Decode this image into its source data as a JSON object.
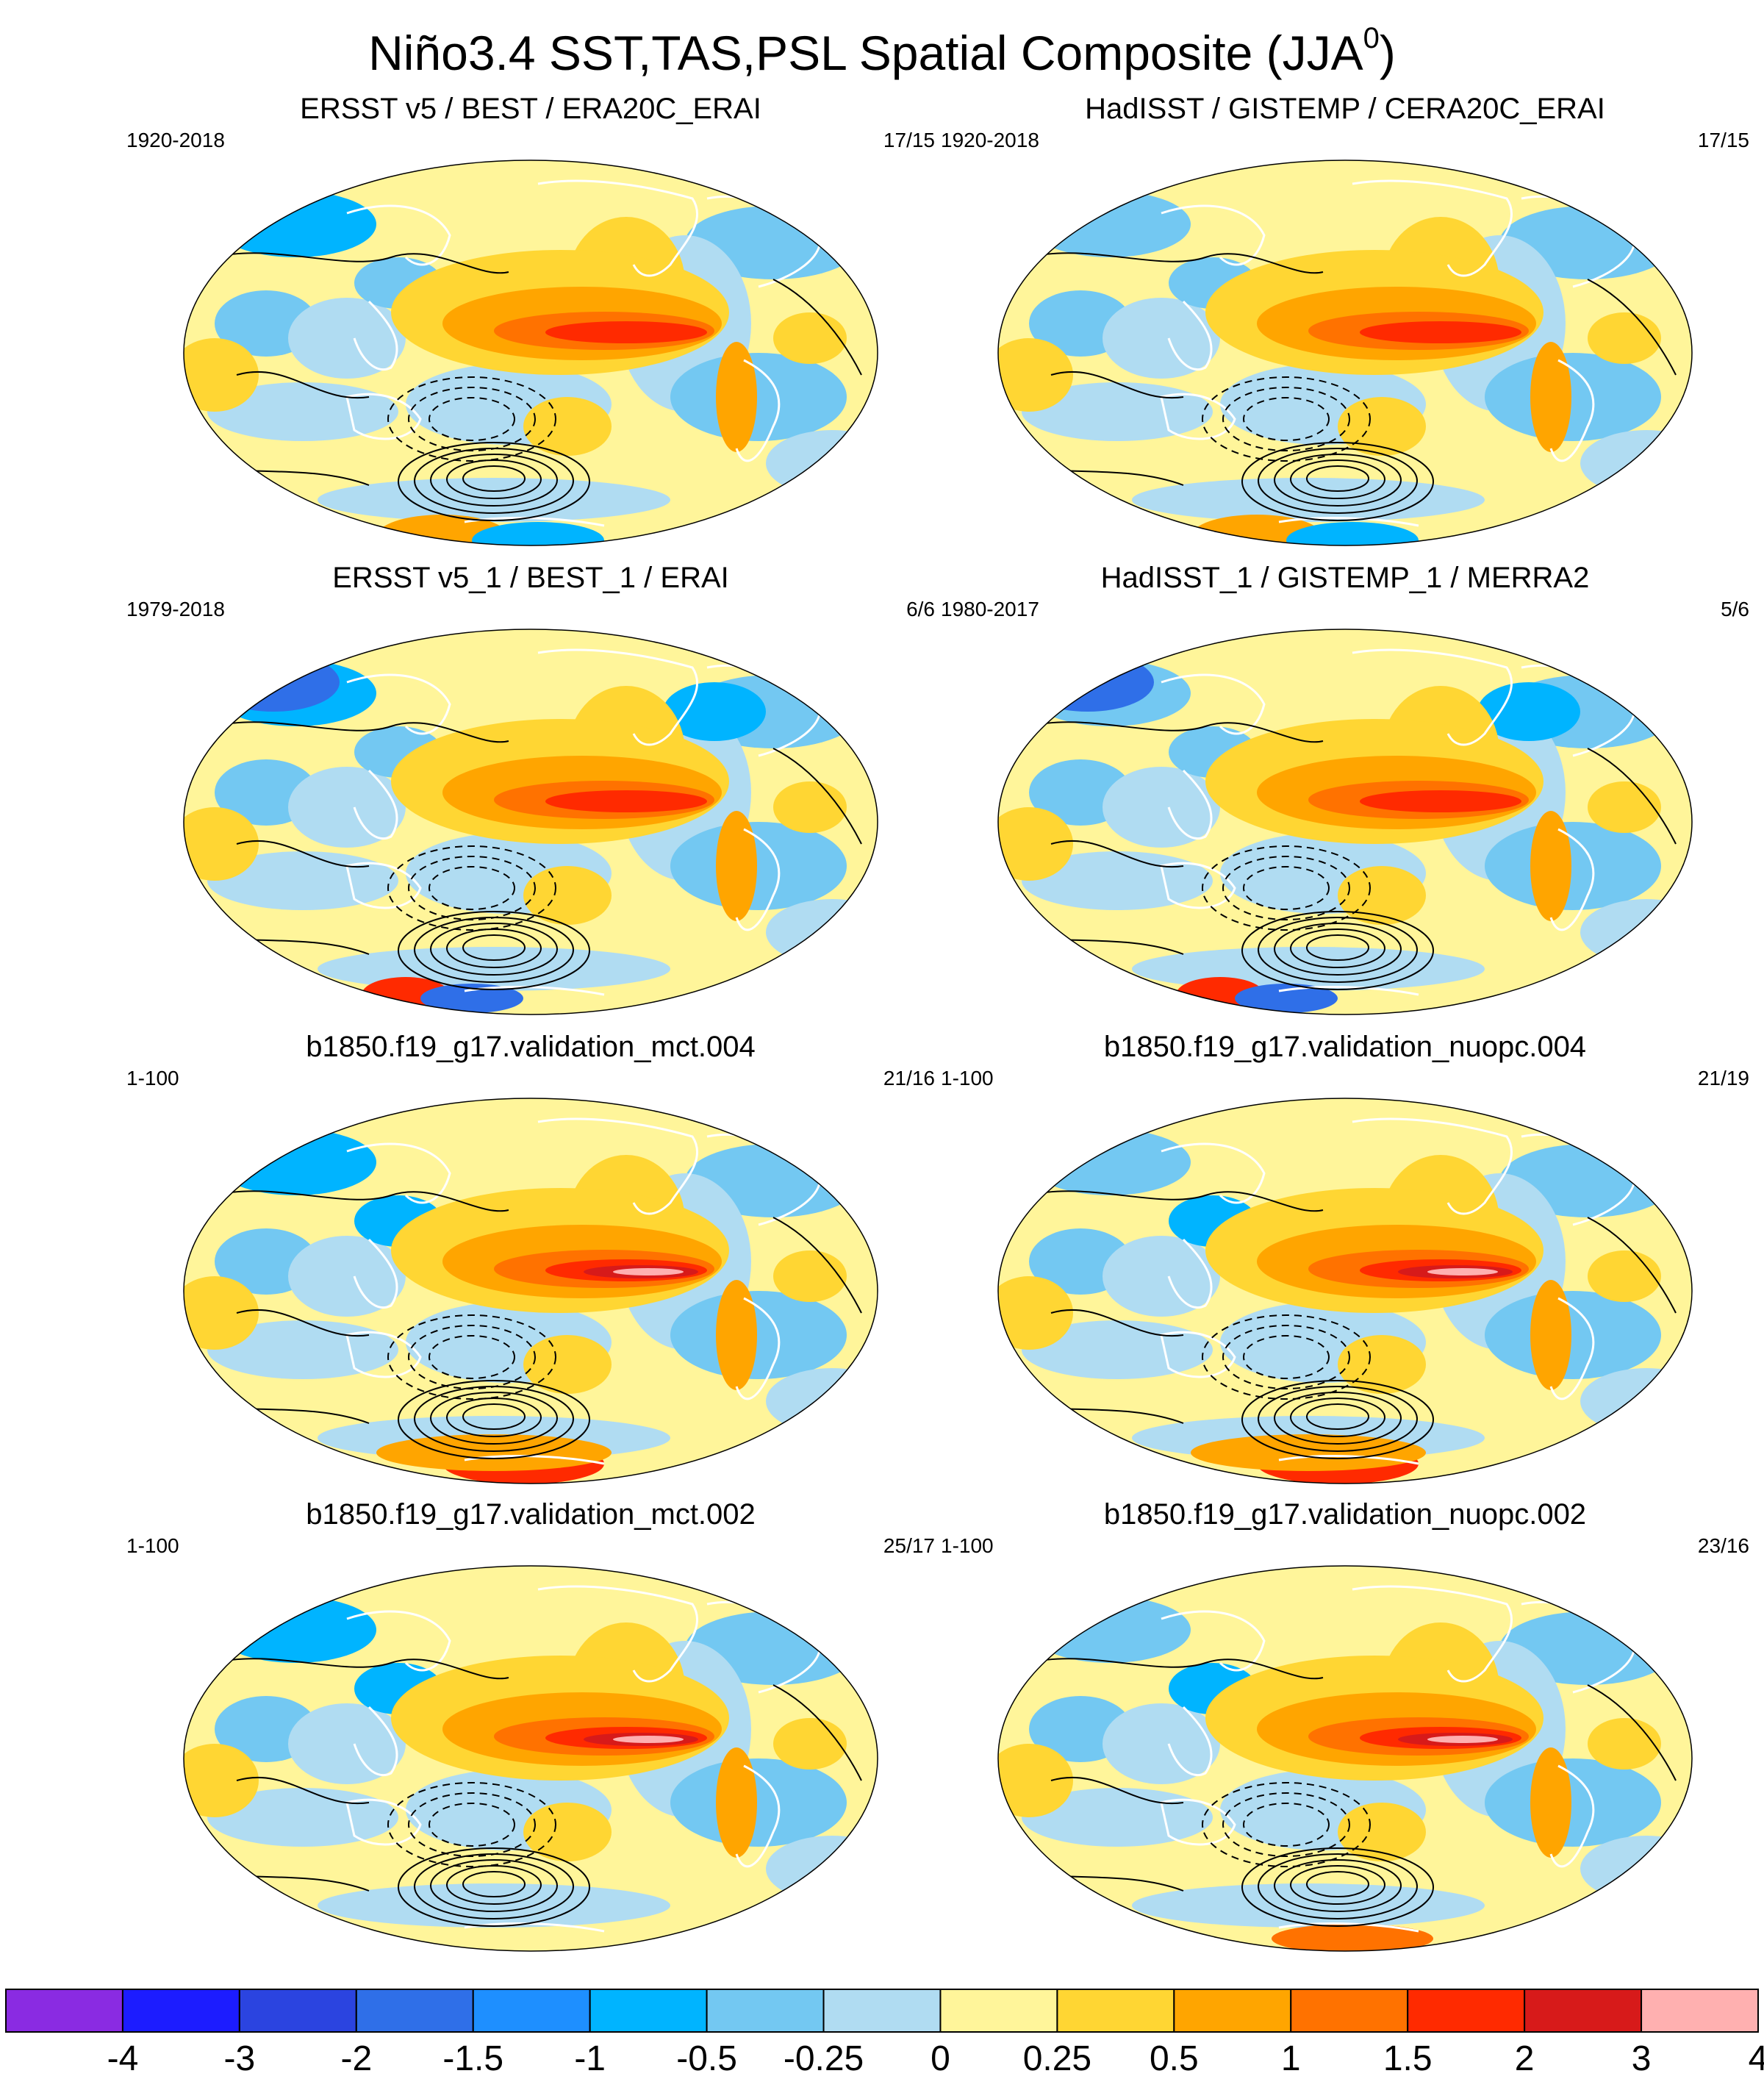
{
  "title": {
    "main": "Niño3.4 SST,TAS,PSL Spatial Composite (JJA",
    "superscript": "0",
    "close": ")"
  },
  "panels": [
    {
      "title": "ERSST v5 / BEST / ERA20C_ERAI",
      "period": "1920-2018",
      "counts": "17/15"
    },
    {
      "title": "HadISST / GISTEMP / CERA20C_ERAI",
      "period": "1920-2018",
      "counts": "17/15"
    },
    {
      "title": "ERSST v5_1 / BEST_1 / ERAI",
      "period": "1979-2018",
      "counts": "6/6"
    },
    {
      "title": "HadISST_1 / GISTEMP_1 / MERRA2",
      "period": "1980-2017",
      "counts": "5/6"
    },
    {
      "title": "b1850.f19_g17.validation_mct.004",
      "period": "1-100",
      "counts": "21/16"
    },
    {
      "title": "b1850.f19_g17.validation_nuopc.004",
      "period": "1-100",
      "counts": "21/19"
    },
    {
      "title": "b1850.f19_g17.validation_mct.002",
      "period": "1-100",
      "counts": "25/17"
    },
    {
      "title": "b1850.f19_g17.validation_nuopc.002",
      "period": "1-100",
      "counts": "23/16"
    }
  ],
  "chart_data": {
    "type": "heatmap",
    "projection": "robinson",
    "colorbar": {
      "tick_labels": [
        "-4",
        "-3",
        "-2",
        "-1.5",
        "-1",
        "-0.5",
        "-0.25",
        "0",
        "0.25",
        "0.5",
        "1",
        "1.5",
        "2",
        "3",
        "4"
      ],
      "levels": [
        -4,
        -3,
        -2,
        -1.5,
        -1,
        -0.5,
        -0.25,
        0,
        0.25,
        0.5,
        1,
        1.5,
        2,
        3,
        4
      ],
      "colors": [
        "#8a2be2",
        "#1c1cff",
        "#2b44e0",
        "#2f6fe8",
        "#1e8fff",
        "#00b4ff",
        "#73c8f2",
        "#b0dcf2",
        "#fff59a",
        "#ffd633",
        "#ffa500",
        "#ff7200",
        "#ff2a00",
        "#d71a1a",
        "#ffb0b0"
      ]
    }
  }
}
